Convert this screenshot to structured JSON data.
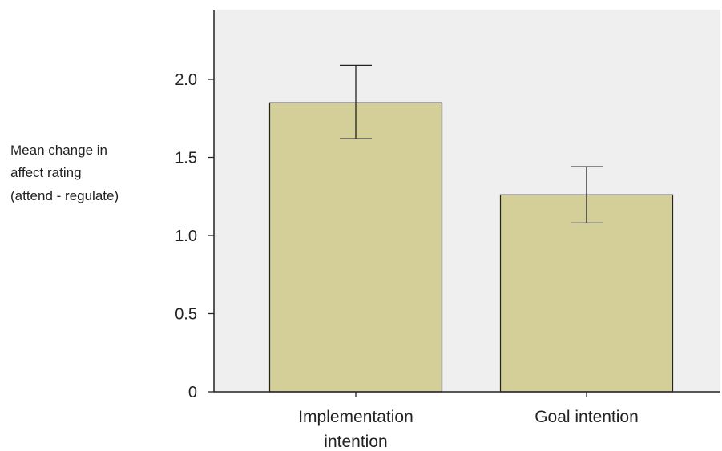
{
  "colors": {
    "plot_background": "#efefef",
    "bar_fill": "#d4cf98",
    "axis": "#222222"
  },
  "chart_data": {
    "type": "bar",
    "ylabel_lines": [
      "Mean change in",
      "affect rating",
      "(attend - regulate)"
    ],
    "categories": [
      "Implementation intention",
      "Goal intention"
    ],
    "category_label_lines": [
      [
        "Implementation",
        "intention"
      ],
      [
        "Goal intention"
      ]
    ],
    "values": [
      1.85,
      1.26
    ],
    "error_bars": [
      {
        "low": 1.62,
        "high": 2.09
      },
      {
        "low": 1.08,
        "high": 1.44
      }
    ],
    "ylim": [
      0,
      2.45
    ],
    "yticks": [
      0,
      0.5,
      1.0,
      1.5,
      2.0
    ],
    "ytick_labels": [
      "0",
      "0.5",
      "1.0",
      "1.5",
      "2.0"
    ],
    "grid": false,
    "legend": "none"
  }
}
